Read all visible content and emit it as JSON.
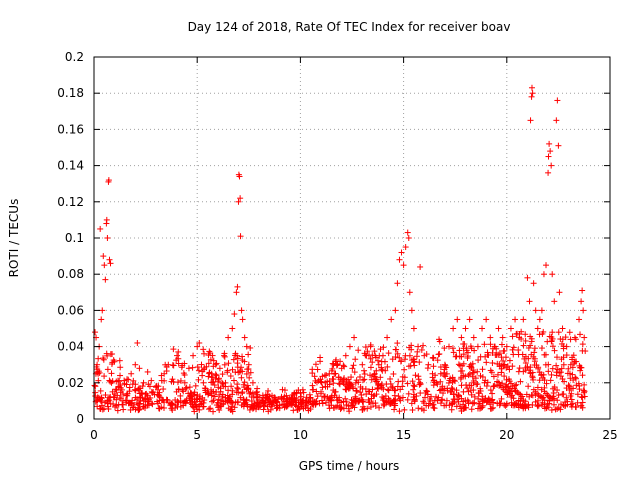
{
  "chart_data": {
    "type": "scatter",
    "title": "Day 124 of 2018, Rate Of TEC Index for receiver boav",
    "xlabel": "GPS time / hours",
    "ylabel": "ROTI / TECUs",
    "xlim": [
      0,
      25
    ],
    "ylim": [
      0,
      0.2
    ],
    "xticks": [
      0,
      5,
      10,
      15,
      20,
      25
    ],
    "xtick_labels": [
      "0",
      "5",
      "10",
      "15",
      "20",
      "25"
    ],
    "yticks": [
      0,
      0.02,
      0.04,
      0.06,
      0.08,
      0.1,
      0.12,
      0.14,
      0.16,
      0.18,
      0.2
    ],
    "ytick_labels": [
      "0",
      "0.02",
      "0.04",
      "0.06",
      "0.08",
      "0.1",
      "0.12",
      "0.14",
      "0.16",
      "0.18",
      "0.2"
    ],
    "grid": true,
    "marker": "+",
    "color": "#ff0000",
    "series": [
      {
        "name": "ROTI",
        "points": [
          [
            0.05,
            0.048
          ],
          [
            0.1,
            0.045
          ],
          [
            0.15,
            0.03
          ],
          [
            0.2,
            0.025
          ],
          [
            0.25,
            0.04
          ],
          [
            0.3,
            0.105
          ],
          [
            0.35,
            0.055
          ],
          [
            0.4,
            0.06
          ],
          [
            0.45,
            0.09
          ],
          [
            0.5,
            0.085
          ],
          [
            0.55,
            0.077
          ],
          [
            0.6,
            0.108
          ],
          [
            0.62,
            0.11
          ],
          [
            0.65,
            0.1
          ],
          [
            0.7,
            0.131
          ],
          [
            0.72,
            0.132
          ],
          [
            0.75,
            0.088
          ],
          [
            0.8,
            0.086
          ],
          [
            0.85,
            0.02
          ],
          [
            0.9,
            0.015
          ],
          [
            1.0,
            0.012
          ],
          [
            1.2,
            0.018
          ],
          [
            1.4,
            0.01
          ],
          [
            1.6,
            0.022
          ],
          [
            1.8,
            0.025
          ],
          [
            2.0,
            0.03
          ],
          [
            2.1,
            0.042
          ],
          [
            2.2,
            0.028
          ],
          [
            2.4,
            0.02
          ],
          [
            2.6,
            0.026
          ],
          [
            2.8,
            0.015
          ],
          [
            3.0,
            0.018
          ],
          [
            3.2,
            0.012
          ],
          [
            3.4,
            0.025
          ],
          [
            3.6,
            0.03
          ],
          [
            3.8,
            0.022
          ],
          [
            4.0,
            0.015
          ],
          [
            4.2,
            0.01
          ],
          [
            4.4,
            0.02
          ],
          [
            4.6,
            0.028
          ],
          [
            4.8,
            0.035
          ],
          [
            5.0,
            0.04
          ],
          [
            5.1,
            0.042
          ],
          [
            5.3,
            0.02
          ],
          [
            5.5,
            0.015
          ],
          [
            5.7,
            0.025
          ],
          [
            5.9,
            0.03
          ],
          [
            6.1,
            0.028
          ],
          [
            6.3,
            0.035
          ],
          [
            6.5,
            0.045
          ],
          [
            6.7,
            0.05
          ],
          [
            6.8,
            0.058
          ],
          [
            6.9,
            0.07
          ],
          [
            6.95,
            0.073
          ],
          [
            7.0,
            0.12
          ],
          [
            7.02,
            0.135
          ],
          [
            7.05,
            0.134
          ],
          [
            7.08,
            0.122
          ],
          [
            7.1,
            0.101
          ],
          [
            7.15,
            0.06
          ],
          [
            7.2,
            0.055
          ],
          [
            7.3,
            0.045
          ],
          [
            7.4,
            0.04
          ],
          [
            7.5,
            0.03
          ],
          [
            7.7,
            0.02
          ],
          [
            7.9,
            0.015
          ],
          [
            8.0,
            0.012
          ],
          [
            8.3,
            0.01
          ],
          [
            8.6,
            0.008
          ],
          [
            9.0,
            0.006
          ],
          [
            9.3,
            0.007
          ],
          [
            9.6,
            0.008
          ],
          [
            10.0,
            0.01
          ],
          [
            10.3,
            0.012
          ],
          [
            10.6,
            0.01
          ],
          [
            11.0,
            0.015
          ],
          [
            11.2,
            0.02
          ],
          [
            11.4,
            0.025
          ],
          [
            11.6,
            0.022
          ],
          [
            11.8,
            0.03
          ],
          [
            12.0,
            0.028
          ],
          [
            12.2,
            0.035
          ],
          [
            12.4,
            0.04
          ],
          [
            12.6,
            0.045
          ],
          [
            12.8,
            0.038
          ],
          [
            13.0,
            0.03
          ],
          [
            13.2,
            0.035
          ],
          [
            13.4,
            0.04
          ],
          [
            13.6,
            0.025
          ],
          [
            13.8,
            0.03
          ],
          [
            14.0,
            0.035
          ],
          [
            14.2,
            0.045
          ],
          [
            14.4,
            0.055
          ],
          [
            14.6,
            0.06
          ],
          [
            14.7,
            0.075
          ],
          [
            14.8,
            0.088
          ],
          [
            14.9,
            0.092
          ],
          [
            15.0,
            0.085
          ],
          [
            15.1,
            0.095
          ],
          [
            15.2,
            0.103
          ],
          [
            15.25,
            0.1
          ],
          [
            15.3,
            0.07
          ],
          [
            15.4,
            0.06
          ],
          [
            15.5,
            0.05
          ],
          [
            15.7,
            0.04
          ],
          [
            15.8,
            0.084
          ],
          [
            16.0,
            0.035
          ],
          [
            16.2,
            0.03
          ],
          [
            16.4,
            0.025
          ],
          [
            16.6,
            0.02
          ],
          [
            16.8,
            0.025
          ],
          [
            17.0,
            0.03
          ],
          [
            17.2,
            0.04
          ],
          [
            17.4,
            0.05
          ],
          [
            17.6,
            0.055
          ],
          [
            17.8,
            0.045
          ],
          [
            18.0,
            0.05
          ],
          [
            18.2,
            0.055
          ],
          [
            18.4,
            0.045
          ],
          [
            18.6,
            0.04
          ],
          [
            18.8,
            0.05
          ],
          [
            19.0,
            0.055
          ],
          [
            19.2,
            0.045
          ],
          [
            19.4,
            0.04
          ],
          [
            19.6,
            0.05
          ],
          [
            19.8,
            0.045
          ],
          [
            20.0,
            0.04
          ],
          [
            20.2,
            0.05
          ],
          [
            20.4,
            0.055
          ],
          [
            20.6,
            0.045
          ],
          [
            20.8,
            0.055
          ],
          [
            21.0,
            0.078
          ],
          [
            21.1,
            0.065
          ],
          [
            21.15,
            0.165
          ],
          [
            21.2,
            0.178
          ],
          [
            21.22,
            0.183
          ],
          [
            21.25,
            0.18
          ],
          [
            21.3,
            0.075
          ],
          [
            21.4,
            0.06
          ],
          [
            21.5,
            0.05
          ],
          [
            21.6,
            0.055
          ],
          [
            21.7,
            0.06
          ],
          [
            21.8,
            0.08
          ],
          [
            21.9,
            0.085
          ],
          [
            22.0,
            0.136
          ],
          [
            22.02,
            0.145
          ],
          [
            22.05,
            0.152
          ],
          [
            22.1,
            0.148
          ],
          [
            22.15,
            0.14
          ],
          [
            22.2,
            0.08
          ],
          [
            22.3,
            0.065
          ],
          [
            22.4,
            0.165
          ],
          [
            22.45,
            0.176
          ],
          [
            22.5,
            0.151
          ],
          [
            22.55,
            0.07
          ],
          [
            22.7,
            0.05
          ],
          [
            22.9,
            0.04
          ],
          [
            23.1,
            0.03
          ],
          [
            23.3,
            0.045
          ],
          [
            23.5,
            0.055
          ],
          [
            23.6,
            0.065
          ],
          [
            23.65,
            0.071
          ],
          [
            23.7,
            0.06
          ],
          [
            23.75,
            0.045
          ]
        ]
      }
    ]
  }
}
